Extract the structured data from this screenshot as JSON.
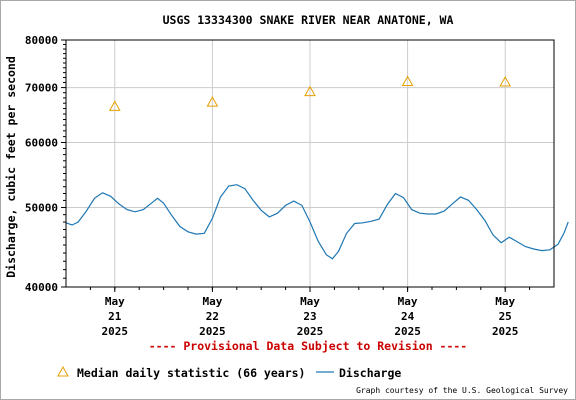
{
  "chart_data": {
    "type": "line",
    "title": "USGS 13334300 SNAKE RIVER NEAR ANATONE, WA",
    "ylabel": "Discharge, cubic feet per second",
    "xlabel": "",
    "y_scale": "log",
    "ylim": [
      40000,
      80000
    ],
    "y_ticks": [
      40000,
      50000,
      60000,
      70000,
      80000
    ],
    "xlim": [
      "2025-05-20T12:00",
      "2025-05-25T12:00"
    ],
    "x_ticks": [
      {
        "line1": "May",
        "line2": "21",
        "line3": "2025"
      },
      {
        "line1": "May",
        "line2": "22",
        "line3": "2025"
      },
      {
        "line1": "May",
        "line2": "23",
        "line3": "2025"
      },
      {
        "line1": "May",
        "line2": "24",
        "line3": "2025"
      },
      {
        "line1": "May",
        "line2": "25",
        "line3": "2025"
      }
    ],
    "grid": true,
    "series": [
      {
        "name": "Discharge",
        "color": "#1f77b4",
        "points": [
          [
            "2025-05-20T12:00",
            47900
          ],
          [
            "2025-05-20T13:30",
            47600
          ],
          [
            "2025-05-20T15:00",
            48000
          ],
          [
            "2025-05-20T17:00",
            49500
          ],
          [
            "2025-05-20T19:00",
            51300
          ],
          [
            "2025-05-20T21:00",
            52100
          ],
          [
            "2025-05-20T23:00",
            51600
          ],
          [
            "2025-05-21T01:00",
            50500
          ],
          [
            "2025-05-21T03:00",
            49700
          ],
          [
            "2025-05-21T05:00",
            49400
          ],
          [
            "2025-05-21T07:00",
            49700
          ],
          [
            "2025-05-21T09:00",
            50600
          ],
          [
            "2025-05-21T10:30",
            51300
          ],
          [
            "2025-05-21T12:00",
            50600
          ],
          [
            "2025-05-21T14:00",
            48900
          ],
          [
            "2025-05-21T16:00",
            47400
          ],
          [
            "2025-05-21T18:00",
            46700
          ],
          [
            "2025-05-21T20:00",
            46400
          ],
          [
            "2025-05-21T22:00",
            46500
          ],
          [
            "2025-05-22T00:00",
            48500
          ],
          [
            "2025-05-22T02:00",
            51500
          ],
          [
            "2025-05-22T04:00",
            53100
          ],
          [
            "2025-05-22T06:00",
            53300
          ],
          [
            "2025-05-22T08:00",
            52700
          ],
          [
            "2025-05-22T10:00",
            51000
          ],
          [
            "2025-05-22T12:00",
            49600
          ],
          [
            "2025-05-22T14:00",
            48700
          ],
          [
            "2025-05-22T16:00",
            49200
          ],
          [
            "2025-05-22T18:00",
            50300
          ],
          [
            "2025-05-22T20:00",
            50900
          ],
          [
            "2025-05-22T22:00",
            50300
          ],
          [
            "2025-05-23T00:00",
            48000
          ],
          [
            "2025-05-23T02:00",
            45500
          ],
          [
            "2025-05-23T04:00",
            43800
          ],
          [
            "2025-05-23T05:30",
            43300
          ],
          [
            "2025-05-23T07:00",
            44200
          ],
          [
            "2025-05-23T09:00",
            46500
          ],
          [
            "2025-05-23T11:00",
            47800
          ],
          [
            "2025-05-23T13:00",
            47900
          ],
          [
            "2025-05-23T15:00",
            48100
          ],
          [
            "2025-05-23T17:00",
            48400
          ],
          [
            "2025-05-23T19:00",
            50400
          ],
          [
            "2025-05-23T21:00",
            52000
          ],
          [
            "2025-05-23T23:00",
            51400
          ],
          [
            "2025-05-24T01:00",
            49700
          ],
          [
            "2025-05-24T03:00",
            49200
          ],
          [
            "2025-05-24T05:00",
            49100
          ],
          [
            "2025-05-24T07:00",
            49100
          ],
          [
            "2025-05-24T09:00",
            49500
          ],
          [
            "2025-05-24T11:00",
            50500
          ],
          [
            "2025-05-24T13:00",
            51500
          ],
          [
            "2025-05-24T15:00",
            51000
          ],
          [
            "2025-05-24T17:00",
            49700
          ],
          [
            "2025-05-24T19:00",
            48200
          ],
          [
            "2025-05-24T21:00",
            46300
          ],
          [
            "2025-05-24T23:00",
            45300
          ],
          [
            "2025-05-25T01:00",
            46000
          ],
          [
            "2025-05-25T03:00",
            45400
          ],
          [
            "2025-05-25T05:00",
            44800
          ],
          [
            "2025-05-25T07:00",
            44500
          ],
          [
            "2025-05-25T09:00",
            44300
          ],
          [
            "2025-05-25T11:00",
            44400
          ],
          [
            "2025-05-25T13:00",
            45100
          ],
          [
            "2025-05-25T14:30",
            46600
          ],
          [
            "2025-05-25T15:30",
            48000
          ]
        ]
      },
      {
        "name": "Median daily statistic (66 years)",
        "color": "#e8a000",
        "marker": "triangle",
        "points": [
          [
            "2025-05-21T00:00",
            66400
          ],
          [
            "2025-05-22T00:00",
            67200
          ],
          [
            "2025-05-23T00:00",
            69200
          ],
          [
            "2025-05-24T00:00",
            71200
          ],
          [
            "2025-05-25T00:00",
            71100
          ]
        ]
      }
    ],
    "legend_position": "bottom",
    "annotations": {
      "provisional": "---- Provisional Data Subject to Revision ----",
      "courtesy": "Graph courtesy of the U.S. Geological Survey"
    },
    "colors": {
      "grid": "#cccccc",
      "provisional": "#cc0000"
    }
  }
}
